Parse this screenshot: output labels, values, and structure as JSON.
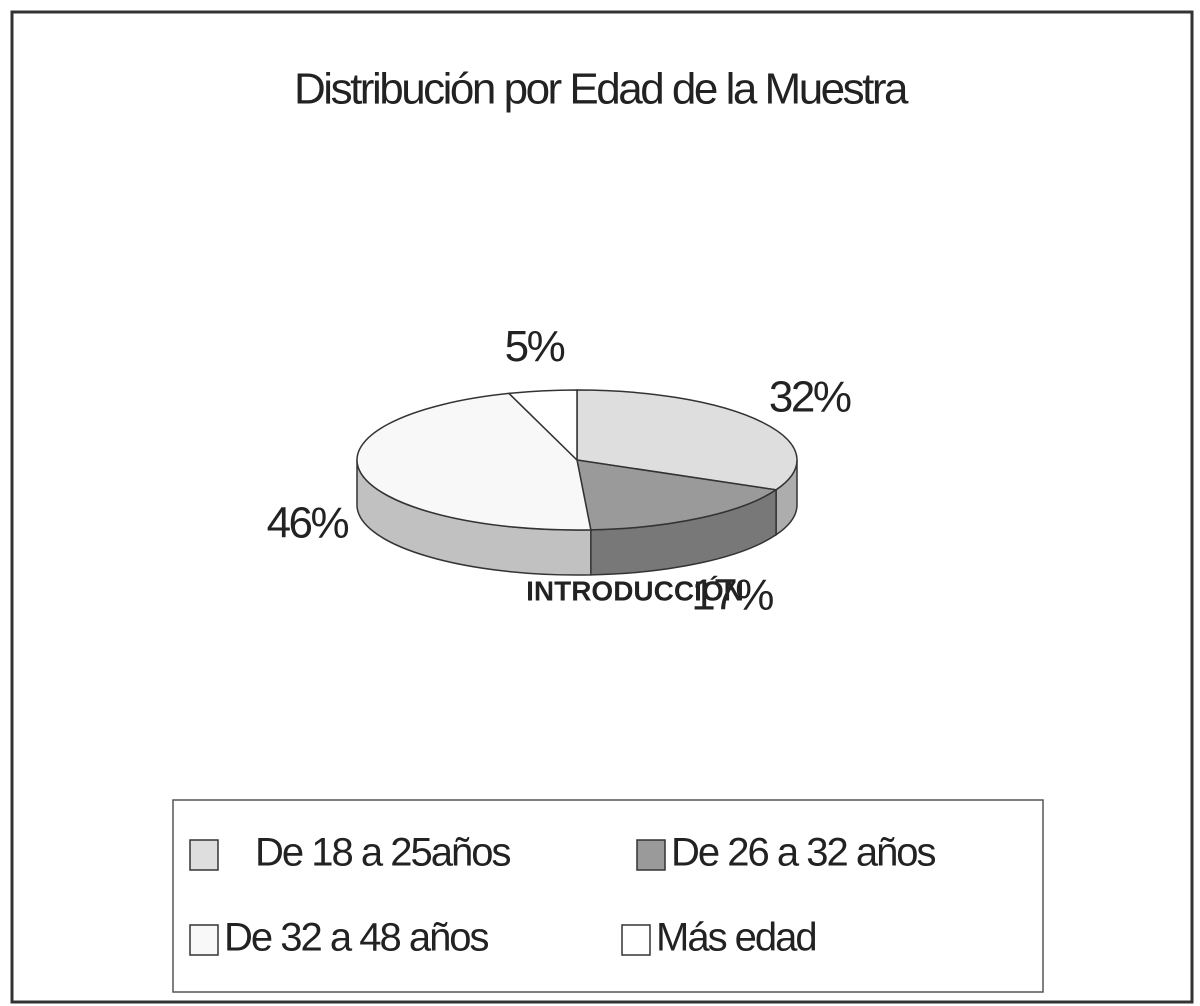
{
  "chart_data": {
    "type": "pie3d",
    "title": "Distribución por Edad de la Muestra",
    "categories": [
      "De 18 a 25años",
      "De 26 a 32 años",
      "De 32 a 48 años",
      "Más edad"
    ],
    "values": [
      32,
      17,
      46,
      5
    ],
    "value_labels": [
      "32%",
      "17%",
      "46%",
      "5%"
    ],
    "colors": [
      "#dedede",
      "#9a9a9a",
      "#f8f8f8",
      "#ffffff"
    ],
    "annotation": "INTRODUCCIÓN"
  }
}
